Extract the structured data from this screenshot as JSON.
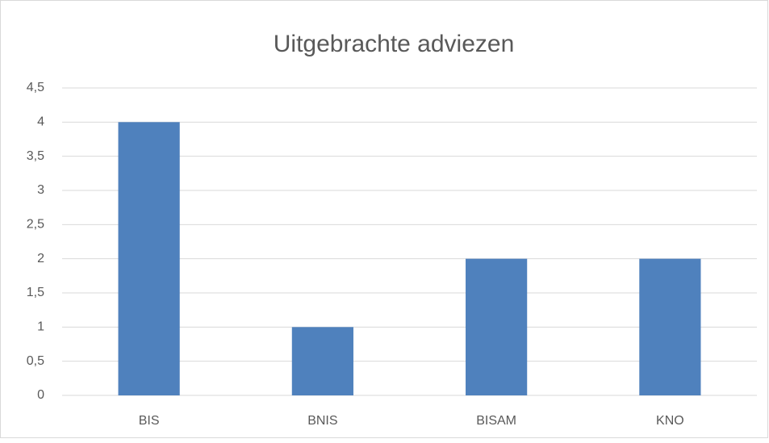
{
  "chart_data": {
    "type": "bar",
    "title": "Uitgebrachte adviezen",
    "categories": [
      "BIS",
      "BNIS",
      "BISAM",
      "KNO"
    ],
    "values": [
      4,
      1,
      2,
      2
    ],
    "color": "#4f81bd",
    "ylim": [
      0,
      4.5
    ],
    "yticks": [
      0,
      {
        "value": 0.5,
        "label": "0,5"
      },
      1,
      {
        "value": 1.5,
        "label": "1,5"
      },
      2,
      {
        "value": 2.5,
        "label": "2,5"
      },
      3,
      {
        "value": 3.5,
        "label": "3,5"
      },
      4,
      {
        "value": 4.5,
        "label": "4,5"
      }
    ],
    "grid": true
  }
}
